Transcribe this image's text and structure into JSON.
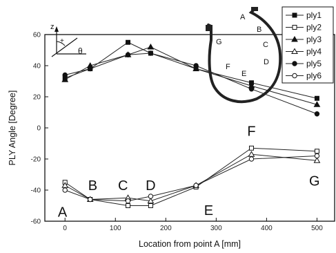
{
  "chart_data": {
    "type": "line",
    "xlabel": "Location from point A [mm]",
    "ylabel": "PLY Angle [Degree]",
    "xlim": [
      -40,
      535
    ],
    "ylim": [
      -60,
      60
    ],
    "x_ticks": [
      "0",
      "100",
      "200",
      "300",
      "400",
      "500"
    ],
    "y_ticks": [
      "60",
      "40",
      "20",
      "0",
      "-20",
      "-40",
      "-60"
    ],
    "legend_position": "top-right",
    "series": [
      {
        "name": "ply1",
        "marker": "square-filled",
        "points": [
          [
            0,
            32
          ],
          [
            50,
            38
          ],
          [
            125,
            55
          ],
          [
            170,
            48
          ],
          [
            260,
            38
          ],
          [
            370,
            29
          ],
          [
            500,
            19
          ]
        ]
      },
      {
        "name": "ply2",
        "marker": "square-open",
        "points": [
          [
            0,
            -35
          ],
          [
            50,
            -46
          ],
          [
            125,
            -50
          ],
          [
            170,
            -50
          ],
          [
            260,
            -38
          ],
          [
            370,
            -13
          ],
          [
            500,
            -15
          ]
        ]
      },
      {
        "name": "ply3",
        "marker": "triangle-filled",
        "points": [
          [
            0,
            31
          ],
          [
            50,
            40
          ],
          [
            125,
            47
          ],
          [
            170,
            52
          ],
          [
            260,
            38
          ],
          [
            370,
            27
          ],
          [
            500,
            15
          ]
        ]
      },
      {
        "name": "ply4",
        "marker": "triangle-open",
        "points": [
          [
            0,
            -37
          ],
          [
            50,
            -46
          ],
          [
            125,
            -45
          ],
          [
            170,
            -47
          ],
          [
            260,
            -37
          ],
          [
            370,
            -17
          ],
          [
            500,
            -21
          ]
        ]
      },
      {
        "name": "ply5",
        "marker": "circle-filled",
        "points": [
          [
            0,
            34
          ],
          [
            50,
            38
          ],
          [
            125,
            47
          ],
          [
            170,
            48
          ],
          [
            260,
            40
          ],
          [
            370,
            25
          ],
          [
            500,
            9
          ]
        ]
      },
      {
        "name": "ply6",
        "marker": "circle-open",
        "points": [
          [
            0,
            -40
          ],
          [
            50,
            -46
          ],
          [
            125,
            -47
          ],
          [
            170,
            -44
          ],
          [
            260,
            -37
          ],
          [
            370,
            -20
          ],
          [
            500,
            -18
          ]
        ]
      }
    ],
    "annotations": [
      {
        "text": "A",
        "x": -5,
        "y": -57
      },
      {
        "text": "B",
        "x": 55,
        "y": -40
      },
      {
        "text": "C",
        "x": 115,
        "y": -40
      },
      {
        "text": "D",
        "x": 170,
        "y": -40
      },
      {
        "text": "E",
        "x": 285,
        "y": -56
      },
      {
        "text": "F",
        "x": 370,
        "y": -5
      },
      {
        "text": "G",
        "x": 495,
        "y": -37
      }
    ]
  },
  "inset_axes": {
    "z": "z",
    "plus": "+",
    "theta": "θ"
  },
  "tire_diagram": {
    "letters": [
      "A",
      "B",
      "C",
      "D",
      "E",
      "F",
      "G"
    ]
  }
}
